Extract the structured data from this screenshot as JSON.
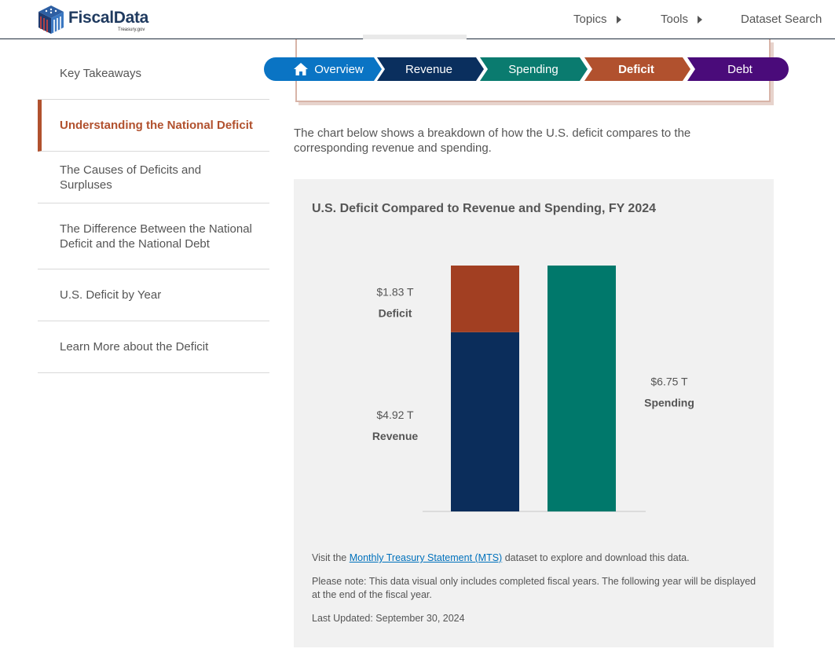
{
  "header": {
    "logo_text": "FiscalData",
    "logo_sub": "Treasury.gov",
    "nav": [
      "Topics",
      "Tools",
      "Dataset Search"
    ]
  },
  "sidebar": {
    "items": [
      {
        "label": "Key Takeaways",
        "active": false
      },
      {
        "label": "Understanding the National Deficit",
        "active": true
      },
      {
        "label": "The Causes of Deficits and Surpluses",
        "active": false
      },
      {
        "label": "The Difference Between the National Deficit and the National Debt",
        "active": false
      },
      {
        "label": "U.S. Deficit by Year",
        "active": false
      },
      {
        "label": "Learn More about the Deficit",
        "active": false
      }
    ]
  },
  "tabs": [
    {
      "label": "Overview",
      "color": "#0a74c4",
      "icon": "home-icon"
    },
    {
      "label": "Revenue",
      "color": "#0a2f5e"
    },
    {
      "label": "Spending",
      "color": "#0a7b6f"
    },
    {
      "label": "Deficit",
      "color": "#b1512e",
      "active": true
    },
    {
      "label": "Debt",
      "color": "#4a0b7a"
    }
  ],
  "intro": "The chart below shows a breakdown of how the U.S. deficit compares to the corresponding revenue and spending.",
  "chart_data": {
    "type": "bar",
    "title": "U.S. Deficit Compared to Revenue and Spending, FY 2024",
    "unit": "T",
    "bars": [
      {
        "stack": [
          {
            "name": "Revenue",
            "value": 4.92,
            "label": "$4.92 T",
            "color": "#0b2d5b"
          },
          {
            "name": "Deficit",
            "value": 1.83,
            "label": "$1.83 T",
            "color": "#a23f22"
          }
        ]
      },
      {
        "stack": [
          {
            "name": "Spending",
            "value": 6.75,
            "label": "$6.75 T",
            "color": "#00786b"
          }
        ]
      }
    ],
    "ylim": [
      0,
      6.75
    ],
    "grid": false,
    "legend": "none"
  },
  "notes": {
    "visit_pre": "Visit the ",
    "visit_link": "Monthly Treasury Statement (MTS)",
    "visit_post": " dataset to explore and download this data.",
    "please_note": "Please note: This data visual only includes completed fiscal years. The following year will be displayed at the end of the fiscal year.",
    "last_updated": "Last Updated: September 30, 2024"
  }
}
